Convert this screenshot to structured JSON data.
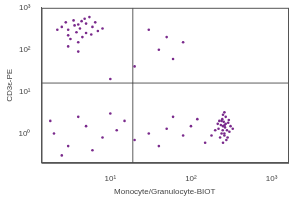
{
  "chart_data": {
    "type": "scatter",
    "x_label": "Monocyte/Granulocyte-BIOT",
    "y_label": "CD3ε-PE",
    "log": true,
    "grid": false,
    "color": "#7a2a8c",
    "xlim": [
      1.4,
      1600
    ],
    "ylim": [
      0.2,
      1000
    ],
    "xticks": [
      {
        "value": 10,
        "label": "10¹"
      },
      {
        "value": 100,
        "label": "10²"
      },
      {
        "value": 1000,
        "label": "10³"
      }
    ],
    "yticks": [
      {
        "value": 1,
        "label": "10⁰"
      },
      {
        "value": 10,
        "label": "10¹"
      },
      {
        "value": 100,
        "label": "10²"
      },
      {
        "value": 1000,
        "label": "10³"
      }
    ],
    "gates": {
      "x": 19,
      "y": 16
    },
    "x": [
      3,
      4,
      5,
      3.5,
      6,
      4.5,
      2.8,
      5.5,
      3.2,
      4.2,
      7,
      2.5,
      3.8,
      5,
      4,
      6.5,
      3,
      4.8,
      2.2,
      5.8,
      3.6,
      4.4,
      8,
      3,
      4,
      250,
      260,
      240,
      280,
      230,
      270,
      250,
      290,
      220,
      260,
      300,
      245,
      275,
      235,
      255,
      265,
      285,
      225,
      310,
      240,
      270,
      250,
      200,
      180,
      330,
      260,
      215,
      295,
      248,
      262,
      2,
      3,
      5,
      8,
      12,
      20,
      30,
      50,
      80,
      1.8,
      4,
      6,
      15,
      40,
      100,
      120,
      2.5,
      10,
      60,
      150,
      30,
      50,
      80,
      40,
      20,
      60,
      10
    ],
    "values": [
      300,
      400,
      250,
      500,
      350,
      200,
      450,
      600,
      180,
      320,
      280,
      350,
      260,
      420,
      150,
      450,
      220,
      550,
      300,
      230,
      380,
      480,
      320,
      120,
      90,
      1.5,
      1,
      2,
      1.2,
      0.8,
      2.5,
      0.6,
      1.8,
      1.3,
      0.9,
      1.1,
      2.2,
      0.7,
      1.6,
      1.9,
      1.4,
      0.8,
      2.0,
      1.5,
      1.0,
      1.7,
      2.8,
      1.2,
      0.9,
      1.3,
      3.2,
      1.7,
      2.1,
      1.2,
      1.6,
      1,
      0.5,
      1.5,
      0.8,
      1.2,
      0.7,
      1,
      1.3,
      0.9,
      2,
      2.5,
      0.4,
      2,
      0.5,
      1.5,
      2.2,
      0.3,
      3,
      2.5,
      0.6,
      300,
      200,
      150,
      100,
      40,
      60,
      20
    ]
  }
}
